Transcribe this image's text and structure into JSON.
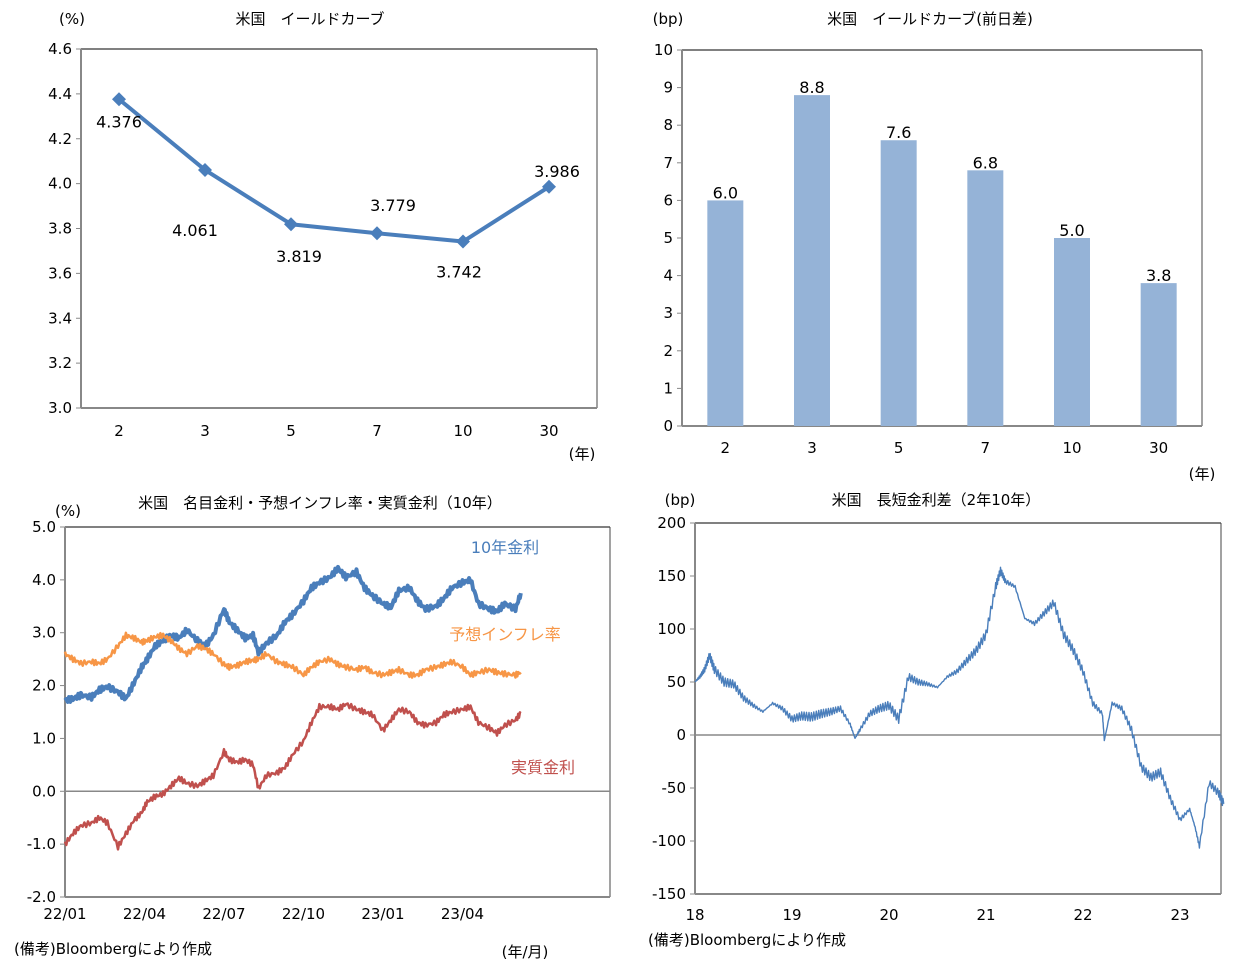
{
  "chart_data": [
    {
      "type": "line",
      "title": "米国　イールドカーブ",
      "ylabel": "(%)",
      "xlabel": "(年)",
      "categories": [
        "2",
        "3",
        "5",
        "7",
        "10",
        "30"
      ],
      "values": [
        4.376,
        4.061,
        3.819,
        3.779,
        3.742,
        3.986
      ],
      "data_labels": [
        "4.376",
        "4.061",
        "3.819",
        "3.779",
        "3.742",
        "3.986"
      ],
      "ylim": [
        3.0,
        4.6
      ],
      "yticks": [
        "3.0",
        "3.2",
        "3.4",
        "3.6",
        "3.8",
        "4.0",
        "4.2",
        "4.4",
        "4.6"
      ],
      "color": "#4a7ebb",
      "marker": "diamond",
      "grid": false
    },
    {
      "type": "bar",
      "title": "米国　イールドカーブ(前日差)",
      "ylabel": "(bp)",
      "xlabel": "(年)",
      "categories": [
        "2",
        "3",
        "5",
        "7",
        "10",
        "30"
      ],
      "values": [
        6.0,
        8.8,
        7.6,
        6.8,
        5.0,
        3.8
      ],
      "data_labels": [
        "6.0",
        "8.8",
        "7.6",
        "6.8",
        "5.0",
        "3.8"
      ],
      "ylim": [
        0,
        10
      ],
      "yticks": [
        "0",
        "1",
        "2",
        "3",
        "4",
        "5",
        "6",
        "7",
        "8",
        "9",
        "10"
      ],
      "color": "#95b3d7",
      "grid": false
    },
    {
      "type": "line",
      "title": "米国　名目金利・予想インフレ率・実質金利（10年）",
      "ylabel": "(%)",
      "xlabel": "(年/月)",
      "x_ticks": [
        "22/01",
        "22/04",
        "22/07",
        "22/10",
        "23/01",
        "23/04"
      ],
      "x_range_months": [
        0,
        17.2
      ],
      "ylim": [
        -2.0,
        5.0
      ],
      "yticks": [
        "-2.0",
        "-1.0",
        "0.0",
        "1.0",
        "2.0",
        "3.0",
        "4.0",
        "5.0"
      ],
      "note": "(備考)Bloombergにより作成",
      "series": [
        {
          "name": "10年金利",
          "color": "#4a7ebb",
          "x": [
            0,
            0.3,
            0.6,
            1.0,
            1.3,
            1.6,
            2.0,
            2.3,
            2.6,
            2.9,
            3.1,
            3.4,
            3.7,
            4.0,
            4.3,
            4.6,
            5.0,
            5.3,
            5.6,
            6.0,
            6.2,
            6.5,
            6.8,
            7.1,
            7.3,
            7.6,
            8.0,
            8.3,
            8.6,
            9.0,
            9.3,
            9.6,
            10.0,
            10.3,
            10.6,
            11.0,
            11.3,
            11.6,
            12.0,
            12.3,
            12.6,
            13.0,
            13.3,
            13.6,
            14.0,
            14.3,
            14.6,
            15.0,
            15.3,
            15.6,
            16.0,
            16.3,
            16.6,
            17.0,
            17.2
          ],
          "y": [
            1.72,
            1.75,
            1.82,
            1.78,
            1.92,
            1.98,
            1.88,
            1.75,
            2.05,
            2.35,
            2.5,
            2.75,
            2.85,
            2.95,
            2.9,
            3.05,
            2.85,
            2.75,
            2.95,
            3.45,
            3.2,
            3.05,
            2.9,
            2.95,
            2.62,
            2.8,
            2.95,
            3.2,
            3.35,
            3.6,
            3.85,
            3.95,
            4.05,
            4.22,
            4.05,
            4.15,
            3.85,
            3.7,
            3.55,
            3.48,
            3.8,
            3.85,
            3.6,
            3.45,
            3.5,
            3.65,
            3.85,
            3.95,
            4.0,
            3.55,
            3.45,
            3.4,
            3.55,
            3.45,
            3.75
          ]
        },
        {
          "name": "予想インフレ率",
          "color": "#f79646",
          "x": [
            0,
            0.3,
            0.6,
            1.0,
            1.3,
            1.6,
            2.0,
            2.3,
            2.6,
            2.9,
            3.1,
            3.4,
            3.7,
            4.0,
            4.3,
            4.6,
            5.0,
            5.3,
            5.6,
            6.0,
            6.2,
            6.5,
            6.8,
            7.1,
            7.3,
            7.6,
            8.0,
            8.3,
            8.6,
            9.0,
            9.3,
            9.6,
            10.0,
            10.3,
            10.6,
            11.0,
            11.3,
            11.6,
            12.0,
            12.3,
            12.6,
            13.0,
            13.3,
            13.6,
            14.0,
            14.3,
            14.6,
            15.0,
            15.3,
            15.6,
            16.0,
            16.3,
            16.6,
            17.0,
            17.2
          ],
          "y": [
            2.6,
            2.5,
            2.42,
            2.45,
            2.42,
            2.5,
            2.75,
            2.95,
            2.9,
            2.82,
            2.85,
            2.92,
            2.95,
            2.85,
            2.7,
            2.6,
            2.75,
            2.7,
            2.6,
            2.4,
            2.35,
            2.38,
            2.45,
            2.48,
            2.5,
            2.6,
            2.45,
            2.4,
            2.35,
            2.2,
            2.35,
            2.45,
            2.5,
            2.4,
            2.35,
            2.3,
            2.35,
            2.25,
            2.2,
            2.25,
            2.3,
            2.2,
            2.2,
            2.3,
            2.35,
            2.4,
            2.45,
            2.35,
            2.2,
            2.25,
            2.3,
            2.25,
            2.22,
            2.2,
            2.25
          ]
        },
        {
          "name": "実質金利",
          "color": "#c0504d",
          "x": [
            0,
            0.3,
            0.6,
            1.0,
            1.3,
            1.6,
            2.0,
            2.3,
            2.6,
            2.9,
            3.1,
            3.4,
            3.7,
            4.0,
            4.3,
            4.6,
            5.0,
            5.3,
            5.6,
            6.0,
            6.2,
            6.5,
            6.8,
            7.1,
            7.3,
            7.6,
            8.0,
            8.3,
            8.6,
            9.0,
            9.3,
            9.6,
            10.0,
            10.3,
            10.6,
            11.0,
            11.3,
            11.6,
            12.0,
            12.3,
            12.6,
            13.0,
            13.3,
            13.6,
            14.0,
            14.3,
            14.6,
            15.0,
            15.3,
            15.6,
            16.0,
            16.3,
            16.6,
            17.0,
            17.2
          ],
          "y": [
            -1.0,
            -0.8,
            -0.65,
            -0.6,
            -0.5,
            -0.6,
            -1.05,
            -0.8,
            -0.55,
            -0.4,
            -0.2,
            -0.1,
            -0.05,
            0.1,
            0.25,
            0.15,
            0.1,
            0.2,
            0.3,
            0.75,
            0.6,
            0.55,
            0.6,
            0.5,
            0.05,
            0.3,
            0.35,
            0.45,
            0.7,
            0.95,
            1.3,
            1.6,
            1.6,
            1.55,
            1.65,
            1.55,
            1.5,
            1.45,
            1.15,
            1.35,
            1.55,
            1.5,
            1.3,
            1.25,
            1.3,
            1.45,
            1.5,
            1.55,
            1.6,
            1.3,
            1.2,
            1.1,
            1.25,
            1.35,
            1.48
          ]
        }
      ],
      "grid": false
    },
    {
      "type": "line",
      "title": "米国　長短金利差（2年10年）",
      "ylabel": "(bp)",
      "x_ticks": [
        "18",
        "19",
        "20",
        "21",
        "22",
        "23"
      ],
      "x_range_years": [
        0,
        5.45
      ],
      "ylim": [
        -150,
        200
      ],
      "yticks": [
        "-150",
        "-100",
        "-50",
        "0",
        "50",
        "100",
        "150",
        "200"
      ],
      "note": "(備考)Bloombergにより作成",
      "series": [
        {
          "name": "長短金利差",
          "color": "#4a7ebb",
          "x": [
            0,
            0.05,
            0.1,
            0.15,
            0.2,
            0.3,
            0.4,
            0.5,
            0.6,
            0.7,
            0.8,
            0.9,
            1.0,
            1.1,
            1.2,
            1.3,
            1.4,
            1.5,
            1.6,
            1.65,
            1.7,
            1.8,
            1.9,
            2.0,
            2.1,
            2.2,
            2.3,
            2.4,
            2.5,
            2.6,
            2.7,
            2.8,
            2.9,
            3.0,
            3.1,
            3.15,
            3.2,
            3.3,
            3.4,
            3.5,
            3.6,
            3.7,
            3.8,
            3.9,
            4.0,
            4.1,
            4.2,
            4.22,
            4.3,
            4.4,
            4.5,
            4.6,
            4.7,
            4.8,
            4.9,
            5.0,
            5.1,
            5.15,
            5.2,
            5.3,
            5.4,
            5.45
          ],
          "y": [
            50,
            55,
            62,
            75,
            62,
            50,
            48,
            35,
            28,
            22,
            30,
            25,
            15,
            18,
            17,
            20,
            22,
            25,
            10,
            -3,
            5,
            20,
            25,
            28,
            15,
            55,
            50,
            48,
            45,
            55,
            60,
            70,
            80,
            95,
            140,
            155,
            145,
            140,
            110,
            105,
            115,
            125,
            95,
            80,
            60,
            30,
            20,
            -5,
            30,
            25,
            5,
            -30,
            -40,
            -35,
            -60,
            -80,
            -70,
            -85,
            -105,
            -45,
            -55,
            -65
          ]
        }
      ],
      "grid": false
    }
  ],
  "labels": {
    "c1_title": "米国　イールドカーブ",
    "c1_unit": "(%)",
    "c1_xunit": "(年)",
    "c2_title": "米国　イールドカーブ(前日差)",
    "c2_unit": "(bp)",
    "c2_xunit": "(年)",
    "c3_title": "米国　名目金利・予想インフレ率・実質金利（10年）",
    "c3_unit": "(%)",
    "c3_xunit": "(年/月)",
    "c3_note": "(備考)Bloombergにより作成",
    "c4_title": "米国　長短金利差（2年10年）",
    "c4_unit": "(bp)",
    "c4_note": "(備考)Bloombergにより作成"
  }
}
